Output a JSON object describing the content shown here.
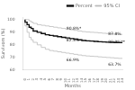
{
  "chart_data": {
    "type": "step",
    "xlabel": "Months",
    "ylabel": "Survivors (%)",
    "x": [
      0,
      0.5,
      1,
      1.5,
      2,
      3,
      4,
      5,
      6,
      7,
      8,
      9,
      10,
      11,
      12,
      13,
      14,
      15,
      16,
      17,
      18,
      19,
      20,
      21,
      22,
      23,
      24
    ],
    "series": [
      {
        "name": "Percent",
        "color": "#111111",
        "values": [
          100,
          98,
          96,
          94,
          93,
          91,
          90,
          89,
          88,
          87.5,
          87,
          86.5,
          86,
          85.5,
          85,
          84.5,
          84,
          83.5,
          83.2,
          83,
          82.8,
          82.5,
          82.3,
          82.1,
          82,
          81.9,
          81.8
        ]
      },
      {
        "name": "95% CI",
        "color": "#bbbbbb",
        "upper": [
          100,
          100,
          100,
          99,
          98,
          97,
          96,
          95.5,
          95,
          94.5,
          94,
          93.5,
          93,
          92.5,
          92,
          91.5,
          91,
          90.5,
          90.2,
          90,
          89.8,
          89.5,
          89.2,
          89,
          88.8,
          88.5,
          88.3
        ],
        "lower": [
          100,
          95,
          90,
          86,
          84,
          82,
          80,
          78,
          76.5,
          75.5,
          75,
          74.5,
          74,
          73.5,
          73,
          72.5,
          72,
          71.5,
          71.2,
          71,
          70.8,
          70.5,
          70.2,
          70,
          69.8,
          69.5,
          69.3
        ]
      }
    ],
    "xlim": [
      -0.5,
      24
    ],
    "ylim": [
      60,
      102
    ],
    "xticks": [
      0,
      1,
      2,
      3,
      4,
      5,
      6,
      7,
      8,
      9,
      10,
      11,
      12,
      13,
      14,
      15,
      16,
      17,
      18,
      19,
      20,
      21,
      22,
      23,
      24
    ],
    "yticks": [
      60,
      70,
      80,
      90,
      100
    ],
    "annotations": [
      {
        "text": "90.8%*",
        "x": 10.2,
        "y": 92.5
      },
      {
        "text": "82.3%",
        "x": 10.2,
        "y": 83.5
      },
      {
        "text": "80.9%**",
        "x": 20.5,
        "y": 82.5
      },
      {
        "text": "87.8%",
        "x": 20.5,
        "y": 88.5
      },
      {
        "text": "66.9%",
        "x": 10.2,
        "y": 68.0
      },
      {
        "text": "63.7%",
        "x": 20.5,
        "y": 64.5
      }
    ],
    "grid": false,
    "legend": "upper right"
  }
}
